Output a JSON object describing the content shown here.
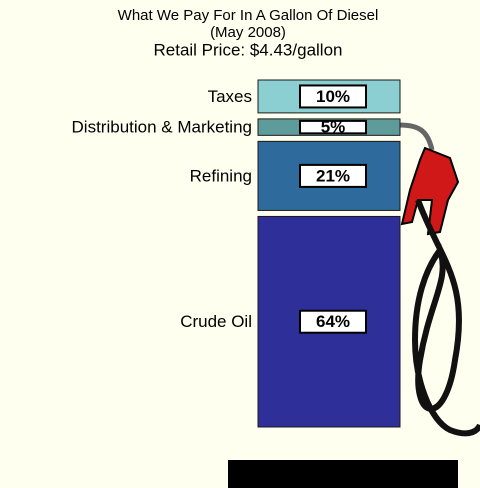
{
  "chart_data": {
    "type": "stacked-column",
    "title": "What We Pay For In A Gallon Of Diesel",
    "subtitle": "(May 2008)",
    "annotation": "Retail Price: $4.43/gallon",
    "categories": [
      "Taxes",
      "Distribution & Marketing",
      "Refining",
      "Crude Oil"
    ],
    "values": [
      10,
      5,
      21,
      64
    ],
    "value_labels": [
      "10%",
      "5%",
      "21%",
      "64%"
    ],
    "colors": [
      "#8ccfd2",
      "#5e9c9c",
      "#2f6a9c",
      "#2e2f98"
    ]
  }
}
